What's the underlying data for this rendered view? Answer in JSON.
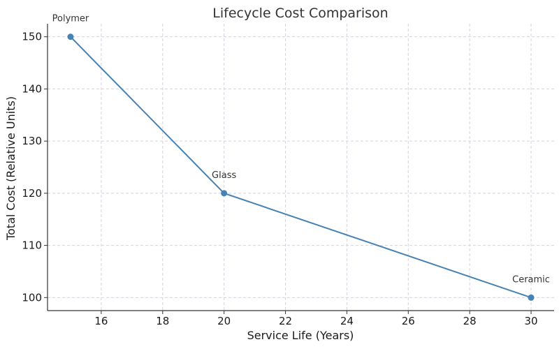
{
  "chart_data": {
    "type": "line",
    "title": "Lifecycle Cost Comparison",
    "xlabel": "Service Life (Years)",
    "ylabel": "Total Cost (Relative Units)",
    "xlim": [
      14.25,
      30.75
    ],
    "ylim": [
      97.5,
      152.5
    ],
    "xticks": [
      16,
      18,
      20,
      22,
      24,
      26,
      28,
      30
    ],
    "yticks": [
      100,
      110,
      120,
      130,
      140,
      150
    ],
    "grid": true,
    "series": [
      {
        "points": [
          {
            "x": 15,
            "y": 150,
            "label": "Polymer"
          },
          {
            "x": 20,
            "y": 120,
            "label": "Glass"
          },
          {
            "x": 30,
            "y": 100,
            "label": "Ceramic"
          }
        ]
      }
    ],
    "colors": {
      "line": "#4682b4",
      "grid": "#d8cfe0",
      "axis": "#333333"
    }
  }
}
